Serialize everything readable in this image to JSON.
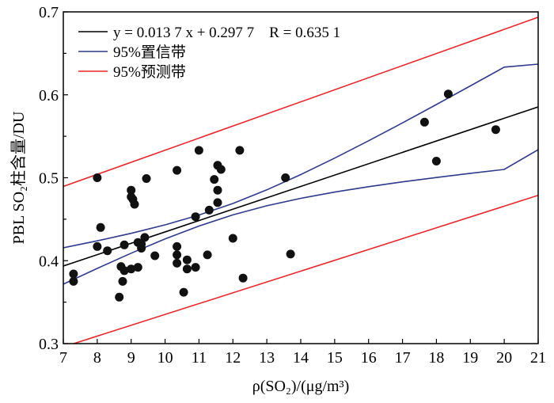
{
  "chart_data": {
    "type": "scatter",
    "xlabel": "ρ(SO₂)/(μg/m³)",
    "ylabel": "PBL SO₂柱含量/DU",
    "xlim": [
      7,
      21
    ],
    "ylim": [
      0.3,
      0.7
    ],
    "x_ticks": [
      "7",
      "8",
      "9",
      "10",
      "11",
      "12",
      "13",
      "14",
      "15",
      "16",
      "17",
      "18",
      "19",
      "20",
      "21"
    ],
    "y_ticks": [
      "0.3",
      "0.4",
      "0.5",
      "0.6",
      "0.7"
    ],
    "grid": false,
    "legend_position": "top-left",
    "legend": [
      {
        "label": "y = 0.013 7 x + 0.297 7    R = 0.635 1",
        "color": "#000000"
      },
      {
        "label": "95%置信带",
        "color": "#2e3a8c"
      },
      {
        "label": "95%预测带",
        "color": "#e8262a"
      }
    ],
    "regression": {
      "slope": 0.0137,
      "intercept": 0.2977,
      "R": 0.6351
    },
    "points": [
      {
        "x": 7.3,
        "y": 0.384
      },
      {
        "x": 7.3,
        "y": 0.375
      },
      {
        "x": 8.0,
        "y": 0.5
      },
      {
        "x": 8.0,
        "y": 0.417
      },
      {
        "x": 8.1,
        "y": 0.44
      },
      {
        "x": 8.3,
        "y": 0.412
      },
      {
        "x": 8.65,
        "y": 0.356
      },
      {
        "x": 8.7,
        "y": 0.393
      },
      {
        "x": 8.75,
        "y": 0.375
      },
      {
        "x": 8.8,
        "y": 0.388
      },
      {
        "x": 8.8,
        "y": 0.419
      },
      {
        "x": 9.0,
        "y": 0.39
      },
      {
        "x": 9.0,
        "y": 0.485
      },
      {
        "x": 9.0,
        "y": 0.477
      },
      {
        "x": 9.05,
        "y": 0.474
      },
      {
        "x": 9.1,
        "y": 0.468
      },
      {
        "x": 9.2,
        "y": 0.392
      },
      {
        "x": 9.2,
        "y": 0.422
      },
      {
        "x": 9.3,
        "y": 0.415
      },
      {
        "x": 9.3,
        "y": 0.42
      },
      {
        "x": 9.4,
        "y": 0.428
      },
      {
        "x": 9.45,
        "y": 0.499
      },
      {
        "x": 9.7,
        "y": 0.406
      },
      {
        "x": 10.35,
        "y": 0.509
      },
      {
        "x": 10.35,
        "y": 0.417
      },
      {
        "x": 10.35,
        "y": 0.407
      },
      {
        "x": 10.35,
        "y": 0.397
      },
      {
        "x": 10.55,
        "y": 0.362
      },
      {
        "x": 10.65,
        "y": 0.401
      },
      {
        "x": 10.65,
        "y": 0.39
      },
      {
        "x": 10.9,
        "y": 0.453
      },
      {
        "x": 10.9,
        "y": 0.392
      },
      {
        "x": 11.0,
        "y": 0.533
      },
      {
        "x": 11.25,
        "y": 0.407
      },
      {
        "x": 11.3,
        "y": 0.461
      },
      {
        "x": 11.45,
        "y": 0.498
      },
      {
        "x": 11.55,
        "y": 0.515
      },
      {
        "x": 11.55,
        "y": 0.485
      },
      {
        "x": 11.55,
        "y": 0.47
      },
      {
        "x": 11.65,
        "y": 0.51
      },
      {
        "x": 12.0,
        "y": 0.427
      },
      {
        "x": 12.2,
        "y": 0.533
      },
      {
        "x": 12.3,
        "y": 0.379
      },
      {
        "x": 13.55,
        "y": 0.5
      },
      {
        "x": 13.7,
        "y": 0.408
      },
      {
        "x": 17.65,
        "y": 0.567
      },
      {
        "x": 18.0,
        "y": 0.52
      },
      {
        "x": 18.35,
        "y": 0.601
      },
      {
        "x": 19.75,
        "y": 0.558
      }
    ],
    "series": [
      {
        "name": "y = 0.013 7 x + 0.297 7    R = 0.635 1",
        "color": "#000000",
        "x": [
          7,
          21
        ],
        "y": [
          0.3936,
          0.5854
        ]
      },
      {
        "name": "95%置信带",
        "color": "#2e3a8c",
        "x": [
          7,
          8,
          9,
          10,
          11,
          12,
          13,
          14,
          15,
          16,
          17,
          18,
          19,
          20,
          21
        ],
        "y": [
          0.4155,
          0.4239,
          0.433,
          0.4432,
          0.455,
          0.469,
          0.4854,
          0.5038,
          0.5237,
          0.5446,
          0.5662,
          0.5883,
          0.6107,
          0.6334,
          0.637
        ]
      },
      {
        "name": "95%置信带",
        "color": "#2e3a8c",
        "x": [
          7,
          8,
          9,
          10,
          11,
          12,
          13,
          14,
          15,
          16,
          17,
          18,
          19,
          20,
          21
        ],
        "y": [
          0.3717,
          0.3907,
          0.409,
          0.4262,
          0.4418,
          0.4552,
          0.4662,
          0.4752,
          0.4827,
          0.4892,
          0.495,
          0.5003,
          0.5053,
          0.51,
          0.5338
        ]
      },
      {
        "name": "95%预测带",
        "color": "#e8262a",
        "x": [
          7,
          21
        ],
        "y": [
          0.4895,
          0.6935
        ]
      },
      {
        "name": "95%预测带",
        "color": "#e8262a",
        "x": [
          7,
          21
        ],
        "y": [
          0.296,
          0.4788
        ]
      }
    ]
  }
}
